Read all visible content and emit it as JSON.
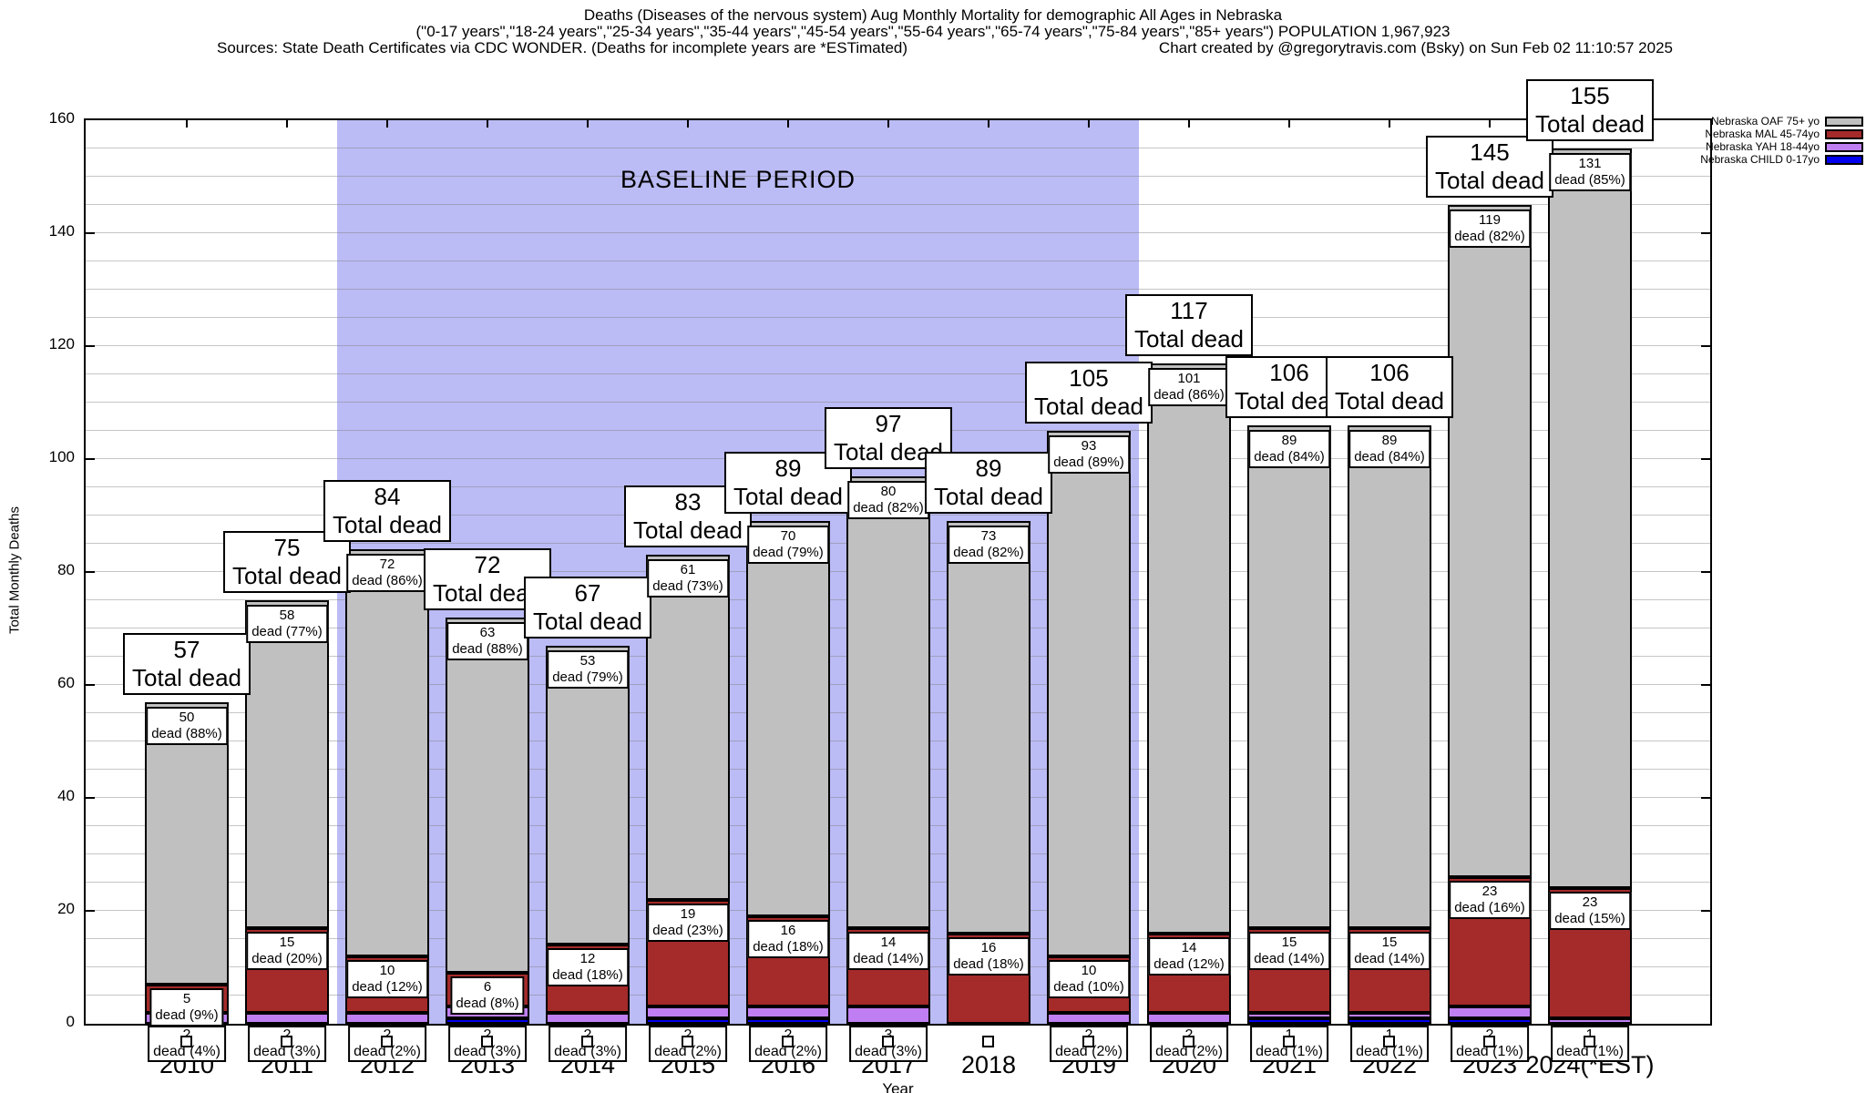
{
  "title": {
    "line1": "Deaths (Diseases of the nervous system) Aug Monthly Mortality for demographic All Ages in Nebraska",
    "line2": "(\"0-17 years\",\"18-24 years\",\"25-34 years\",\"35-44 years\",\"45-54 years\",\"55-64 years\",\"65-74 years\",\"75-84 years\",\"85+ years\") POPULATION 1,967,923",
    "line3_left": "Sources: State Death Certificates via CDC WONDER. (Deaths for incomplete years are *ESTimated)",
    "line3_right": "Chart created by @gregorytravis.com (Bsky) on Sun Feb 02 11:10:57 2025"
  },
  "axes": {
    "ylabel": "Total Monthly Deaths",
    "xlabel": "Year",
    "ymin": 0,
    "ymax": 160,
    "ytick_step": 20,
    "minor_grid_step": 5
  },
  "baseline": {
    "label": "BASELINE PERIOD",
    "start_year": "2012",
    "end_year": "2019",
    "color": "#bbbbf5"
  },
  "legend": {
    "items": [
      {
        "label": "Nebraska OAF 75+ yo",
        "color": "#c0c0c0"
      },
      {
        "label": "Nebraska MAL 45-74yo",
        "color": "#a52a2a"
      },
      {
        "label": "Nebraska YAH 18-44yo",
        "color": "#bf7ff2"
      },
      {
        "label": "Nebraska CHILD 0-17yo",
        "color": "#0000ee"
      }
    ]
  },
  "chart_data": {
    "type": "bar",
    "stacked": true,
    "title": "Deaths (Diseases of the nervous system) Aug Monthly Mortality for demographic All Ages in Nebraska",
    "xlabel": "Year",
    "ylabel": "Total Monthly Deaths",
    "ylim": [
      0,
      160
    ],
    "grid": true,
    "legend_position": "top-right",
    "categories": [
      "2010",
      "2011",
      "2012",
      "2013",
      "2014",
      "2015",
      "2016",
      "2017",
      "2018",
      "2019",
      "2020",
      "2021",
      "2022",
      "2023",
      "2024(*EST)"
    ],
    "series": [
      {
        "name": "Nebraska CHILD 0-17yo",
        "color": "#0000ee",
        "values": [
          0,
          0,
          0,
          1,
          0,
          1,
          1,
          0,
          0,
          0,
          0,
          1,
          1,
          1,
          0
        ]
      },
      {
        "name": "Nebraska YAH 18-44yo",
        "color": "#bf7ff2",
        "values": [
          2,
          2,
          2,
          2,
          2,
          2,
          2,
          3,
          0,
          2,
          2,
          1,
          1,
          2,
          1
        ]
      },
      {
        "name": "Nebraska MAL 45-74yo",
        "color": "#a52a2a",
        "values": [
          5,
          15,
          10,
          6,
          12,
          19,
          16,
          14,
          16,
          10,
          14,
          15,
          15,
          23,
          23
        ]
      },
      {
        "name": "Nebraska OAF 75+ yo",
        "color": "#c0c0c0",
        "values": [
          50,
          58,
          72,
          63,
          53,
          61,
          70,
          80,
          73,
          93,
          101,
          89,
          89,
          119,
          131
        ]
      }
    ],
    "totals": [
      57,
      75,
      84,
      72,
      67,
      83,
      89,
      97,
      89,
      105,
      117,
      106,
      106,
      145,
      155
    ],
    "total_label": "Total dead",
    "dead_word": "dead",
    "oaf_pct": [
      "88%",
      "77%",
      "86%",
      "88%",
      "79%",
      "73%",
      "79%",
      "82%",
      "82%",
      "89%",
      "86%",
      "84%",
      "84%",
      "82%",
      "85%"
    ],
    "mal_pct": [
      "9%",
      "20%",
      "12%",
      "8%",
      "18%",
      "23%",
      "18%",
      "14%",
      "18%",
      "10%",
      "12%",
      "14%",
      "14%",
      "16%",
      "15%"
    ],
    "yah_pct": [
      "4%",
      "3%",
      "2%",
      "3%",
      "3%",
      "2%",
      "2%",
      "3%",
      null,
      "2%",
      "2%",
      "1%",
      "1%",
      "1%",
      "1%"
    ]
  }
}
